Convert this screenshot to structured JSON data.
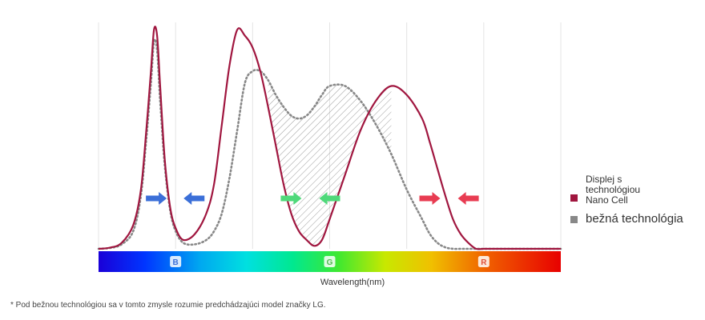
{
  "chart_data": {
    "type": "line",
    "xlabel": "Wavelength(nm)",
    "band_labels": [
      "B",
      "G",
      "R"
    ],
    "series": [
      {
        "name": "Displej s technológiou Nano Cell",
        "color": "#a0163f",
        "style": "solid",
        "x": [
          0,
          15,
          30,
          45,
          55,
          62,
          68,
          72,
          76,
          80,
          86,
          93,
          100,
          110,
          125,
          140,
          150,
          160,
          170,
          180,
          190,
          200,
          210,
          220,
          230,
          240,
          250,
          260,
          270,
          280,
          290,
          300,
          320,
          340,
          360,
          380,
          400,
          420,
          430,
          440,
          450,
          460,
          470,
          480,
          490,
          500,
          510,
          520,
          530,
          540,
          550,
          560,
          570,
          580,
          590,
          600
        ],
        "y": [
          0,
          0.4,
          2,
          8,
          20,
          40,
          60,
          74,
          72,
          55,
          30,
          14,
          7,
          3,
          5,
          12,
          22,
          42,
          62,
          74,
          72,
          68,
          60,
          48,
          35,
          22,
          12,
          6,
          3,
          1,
          3,
          10,
          25,
          40,
          50,
          55,
          52,
          44,
          36,
          27,
          18,
          10,
          5,
          2,
          0,
          0,
          0,
          0,
          0,
          0,
          0,
          0,
          0,
          0,
          0,
          0
        ]
      },
      {
        "name": "bežná technológia",
        "color": "#888888",
        "style": "dotted",
        "x": [
          0,
          15,
          30,
          45,
          55,
          62,
          68,
          72,
          76,
          80,
          86,
          93,
          100,
          110,
          125,
          140,
          150,
          160,
          170,
          180,
          190,
          200,
          210,
          220,
          230,
          240,
          250,
          260,
          270,
          280,
          290,
          300,
          320,
          340,
          360,
          380,
          400,
          420,
          430,
          440,
          450,
          460,
          470,
          480,
          490,
          500,
          510,
          520,
          530,
          540,
          550,
          560,
          570,
          580,
          590,
          600
        ],
        "y": [
          0,
          0.3,
          1.5,
          6,
          18,
          37,
          56,
          70,
          67,
          50,
          28,
          13,
          6,
          2,
          1.5,
          3,
          6,
          12,
          24,
          40,
          56,
          60,
          60,
          57,
          52,
          48,
          45,
          44,
          45,
          48,
          52,
          55,
          55,
          50,
          42,
          32,
          20,
          10,
          5,
          2,
          0.5,
          0,
          0,
          0,
          0,
          0,
          0,
          0,
          0,
          0,
          0,
          0,
          0,
          0,
          0,
          0
        ]
      }
    ],
    "shaded_region": {
      "x_from": 215,
      "x_to": 388
    },
    "arrows": [
      {
        "x": 75,
        "direction": "right",
        "color": "#3b6fd8"
      },
      {
        "x": 124,
        "direction": "left",
        "color": "#3b6fd8"
      },
      {
        "x": 250,
        "direction": "right",
        "color": "#4fd97a"
      },
      {
        "x": 300,
        "direction": "left",
        "color": "#4fd97a"
      },
      {
        "x": 430,
        "direction": "right",
        "color": "#e83c52"
      },
      {
        "x": 480,
        "direction": "left",
        "color": "#e83c52"
      }
    ],
    "ylim": [
      0,
      80
    ],
    "xlim": [
      0,
      600
    ],
    "grid": "vertical",
    "legend_position": "right"
  },
  "legend": [
    {
      "label": "Displej s technológiou Nano Cell",
      "color": "#a0163f"
    },
    {
      "label": "bežná technológia",
      "color": "#888888"
    }
  ],
  "footnote": "* Pod bežnou technológiou sa v tomto zmysle rozumie predchádzajúci model značky LG."
}
